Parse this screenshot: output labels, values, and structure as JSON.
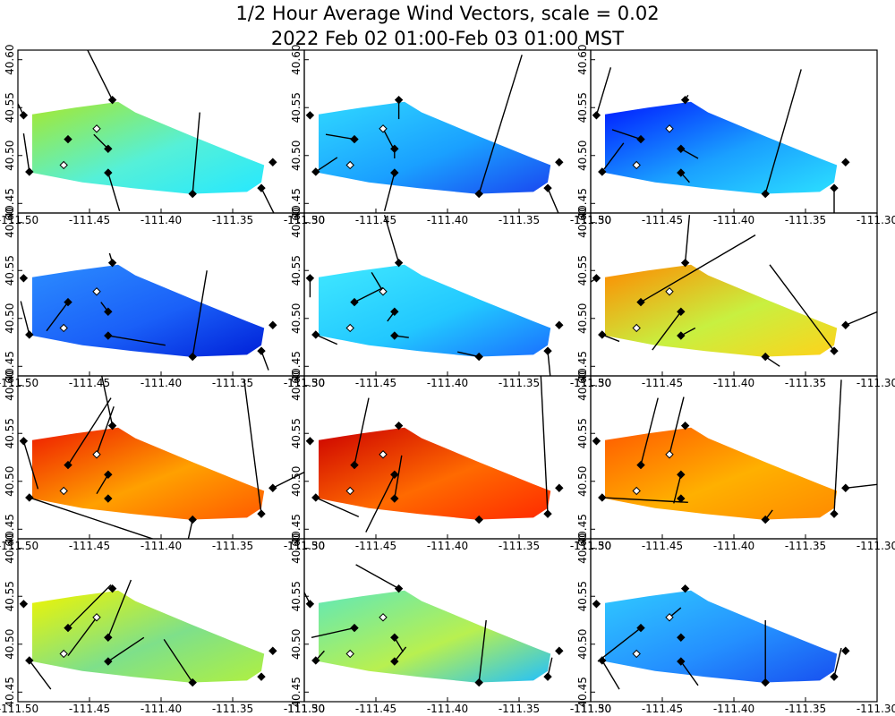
{
  "title": {
    "line1": "1/2 Hour Average Wind Vectors, scale =  0.02",
    "line2": "2022 Feb 02 01:00-Feb 03 01:00 MST"
  },
  "chart_data": {
    "type": "grid-map",
    "rows": 4,
    "cols": 3,
    "x_ticks": [
      "-111.50",
      "-111.45",
      "-111.40",
      "-111.35",
      "-111.30"
    ],
    "x_tick_values": [
      -111.5,
      -111.45,
      -111.4,
      -111.35,
      -111.3
    ],
    "y_ticks": [
      "40.45",
      "40.50",
      "40.55",
      "40.60"
    ],
    "y_tick_values": [
      40.45,
      40.5,
      40.55,
      40.6
    ],
    "xlim": [
      -111.5,
      -111.3
    ],
    "ylim": [
      40.44,
      40.61
    ],
    "region_polygon": [
      [
        -111.49,
        40.543
      ],
      [
        -111.46,
        40.55
      ],
      [
        -111.43,
        40.556
      ],
      [
        -111.418,
        40.545
      ],
      [
        -111.378,
        40.52
      ],
      [
        -111.34,
        40.497
      ],
      [
        -111.328,
        40.49
      ],
      [
        -111.33,
        40.472
      ],
      [
        -111.34,
        40.462
      ],
      [
        -111.38,
        40.46
      ],
      [
        -111.42,
        40.466
      ],
      [
        -111.455,
        40.472
      ],
      [
        -111.49,
        40.482
      ]
    ],
    "stations": [
      {
        "lon": -111.496,
        "lat": 40.542,
        "filled": true
      },
      {
        "lon": -111.434,
        "lat": 40.558,
        "filled": true
      },
      {
        "lon": -111.465,
        "lat": 40.517,
        "filled": true
      },
      {
        "lon": -111.445,
        "lat": 40.528,
        "filled": false
      },
      {
        "lon": -111.437,
        "lat": 40.507,
        "filled": true
      },
      {
        "lon": -111.468,
        "lat": 40.49,
        "filled": false
      },
      {
        "lon": -111.492,
        "lat": 40.483,
        "filled": true
      },
      {
        "lon": -111.437,
        "lat": 40.482,
        "filled": true
      },
      {
        "lon": -111.378,
        "lat": 40.46,
        "filled": true
      },
      {
        "lon": -111.33,
        "lat": 40.466,
        "filled": true
      },
      {
        "lon": -111.322,
        "lat": 40.493,
        "filled": true
      }
    ],
    "panels": [
      {
        "c1": "#a6e82c",
        "c2": "#26e8ff",
        "c3": "#55f0d8",
        "vectors": [
          [
            0,
            -0.02,
            0.06
          ],
          [
            1,
            -0.02,
            0.06
          ],
          [
            2,
            0,
            0
          ],
          [
            3,
            0,
            0
          ],
          [
            4,
            -0.01,
            0.015
          ],
          [
            5,
            0,
            0
          ],
          [
            6,
            -0.004,
            0.04
          ],
          [
            7,
            0.008,
            -0.04
          ],
          [
            8,
            0.005,
            0.085
          ],
          [
            9,
            0.01,
            -0.03
          ],
          [
            10,
            0,
            0
          ]
        ]
      },
      {
        "c1": "#30d8ff",
        "c2": "#1a46f0",
        "c3": "#1aa0ff",
        "vectors": [
          [
            0,
            0,
            0
          ],
          [
            1,
            0,
            -0.02
          ],
          [
            2,
            -0.02,
            0.005
          ],
          [
            3,
            0.007,
            -0.02
          ],
          [
            4,
            0,
            -0.01
          ],
          [
            5,
            0,
            0
          ],
          [
            6,
            0.015,
            0.015
          ],
          [
            7,
            -0.007,
            -0.04
          ],
          [
            8,
            0.03,
            0.145
          ],
          [
            9,
            0.01,
            -0.035
          ],
          [
            10,
            0,
            0
          ]
        ]
      },
      {
        "c1": "#0018ff",
        "c2": "#2ce0ff",
        "c3": "#1aa0ff",
        "vectors": [
          [
            0,
            0.01,
            0.05
          ],
          [
            1,
            0.002,
            0.005
          ],
          [
            2,
            -0.02,
            0.01
          ],
          [
            3,
            0,
            0
          ],
          [
            4,
            0.012,
            -0.01
          ],
          [
            5,
            0,
            0
          ],
          [
            6,
            0.015,
            0.03
          ],
          [
            7,
            0.006,
            -0.01
          ],
          [
            8,
            0.025,
            0.13
          ],
          [
            9,
            0,
            -0.04
          ],
          [
            10,
            0,
            0
          ]
        ]
      },
      {
        "c1": "#2c8cff",
        "c2": "#0020d8",
        "c3": "#1a60f8",
        "vectors": [
          [
            0,
            0,
            0
          ],
          [
            1,
            -0.002,
            0.01
          ],
          [
            2,
            -0.015,
            -0.03
          ],
          [
            3,
            0,
            0
          ],
          [
            4,
            -0.005,
            0.01
          ],
          [
            5,
            0,
            0
          ],
          [
            6,
            -0.006,
            0.035
          ],
          [
            7,
            0.04,
            -0.01
          ],
          [
            8,
            0.01,
            0.09
          ],
          [
            9,
            0.005,
            -0.02
          ],
          [
            10,
            0,
            0
          ]
        ]
      },
      {
        "c1": "#40e8ff",
        "c2": "#1a70ff",
        "c3": "#22c8ff",
        "vectors": [
          [
            0,
            0,
            -0.02
          ],
          [
            1,
            -0.01,
            0.05
          ],
          [
            2,
            0.02,
            0.015
          ],
          [
            3,
            -0.008,
            0.02
          ],
          [
            4,
            -0.005,
            -0.01
          ],
          [
            5,
            0,
            0
          ],
          [
            6,
            0.015,
            -0.01
          ],
          [
            7,
            0.01,
            -0.002
          ],
          [
            8,
            -0.015,
            0.005
          ],
          [
            9,
            0.002,
            -0.03
          ],
          [
            10,
            0,
            0
          ]
        ]
      },
      {
        "c1": "#ff8a00",
        "c2": "#ffd21a",
        "c3": "#c8f040",
        "vectors": [
          [
            0,
            -0.02,
            -0.02
          ],
          [
            1,
            0.003,
            0.05
          ],
          [
            2,
            0.08,
            0.07
          ],
          [
            3,
            0,
            0
          ],
          [
            4,
            -0.02,
            -0.04
          ],
          [
            5,
            0,
            0
          ],
          [
            6,
            0.012,
            -0.007
          ],
          [
            7,
            0.01,
            0.008
          ],
          [
            8,
            0.01,
            -0.01
          ],
          [
            9,
            -0.045,
            0.09
          ],
          [
            10,
            0.04,
            0.025
          ]
        ]
      },
      {
        "c1": "#ee1a00",
        "c2": "#ff5a00",
        "c3": "#ffa000",
        "vectors": [
          [
            0,
            0.01,
            -0.05
          ],
          [
            1,
            -0.01,
            0.07
          ],
          [
            2,
            0.03,
            0.07
          ],
          [
            3,
            0.012,
            0.05
          ],
          [
            4,
            -0.008,
            -0.02
          ],
          [
            5,
            0,
            0
          ],
          [
            6,
            0.13,
            -0.065
          ],
          [
            7,
            0,
            0
          ],
          [
            8,
            -0.003,
            -0.02
          ],
          [
            9,
            -0.012,
            0.14
          ],
          [
            10,
            0.04,
            0.03
          ]
        ]
      },
      {
        "c1": "#cc0000",
        "c2": "#ff2a00",
        "c3": "#ff6a00",
        "vectors": [
          [
            0,
            0,
            0
          ],
          [
            1,
            0,
            0
          ],
          [
            2,
            0.01,
            0.07
          ],
          [
            3,
            0,
            0
          ],
          [
            4,
            -0.02,
            -0.06
          ],
          [
            5,
            0,
            0
          ],
          [
            6,
            0.03,
            -0.02
          ],
          [
            7,
            0.005,
            0.045
          ],
          [
            8,
            0,
            0
          ],
          [
            9,
            -0.005,
            0.15
          ],
          [
            10,
            0,
            0
          ]
        ]
      },
      {
        "c1": "#ff5a00",
        "c2": "#ff8a00",
        "c3": "#ffb000",
        "vectors": [
          [
            0,
            0,
            0
          ],
          [
            1,
            0,
            0
          ],
          [
            2,
            0.012,
            0.07
          ],
          [
            3,
            0.01,
            0.06
          ],
          [
            4,
            -0.005,
            -0.03
          ],
          [
            5,
            0,
            0
          ],
          [
            6,
            0.06,
            -0.005
          ],
          [
            7,
            0,
            0
          ],
          [
            8,
            0.005,
            0.01
          ],
          [
            9,
            0.005,
            0.14
          ],
          [
            10,
            0.06,
            0.01
          ]
        ]
      },
      {
        "c1": "#f0f500",
        "c2": "#b0f040",
        "c3": "#7ee08a",
        "vectors": [
          [
            0,
            0,
            0
          ],
          [
            1,
            0,
            0
          ],
          [
            2,
            0.03,
            0.045
          ],
          [
            3,
            -0.02,
            -0.04
          ],
          [
            4,
            0.016,
            0.06
          ],
          [
            5,
            0,
            0
          ],
          [
            6,
            0.015,
            -0.03
          ],
          [
            7,
            0.025,
            0.025
          ],
          [
            8,
            -0.02,
            0.045
          ],
          [
            9,
            0,
            0
          ],
          [
            10,
            0,
            0
          ]
        ]
      },
      {
        "c1": "#60e8b8",
        "c2": "#20c0ff",
        "c3": "#b8f050",
        "vectors": [
          [
            0,
            -0.01,
            0.03
          ],
          [
            1,
            -0.03,
            0.025
          ],
          [
            2,
            -0.03,
            -0.01
          ],
          [
            3,
            0,
            0
          ],
          [
            4,
            0.006,
            -0.015
          ],
          [
            5,
            0,
            0
          ],
          [
            6,
            0.006,
            0.01
          ],
          [
            7,
            0.008,
            0.015
          ],
          [
            8,
            0.005,
            0.065
          ],
          [
            9,
            0.003,
            0.02
          ],
          [
            10,
            0,
            0
          ]
        ]
      },
      {
        "c1": "#30c8ff",
        "c2": "#1850f0",
        "c3": "#2490ff",
        "vectors": [
          [
            0,
            0,
            0
          ],
          [
            1,
            0,
            0
          ],
          [
            2,
            -0.03,
            -0.035
          ],
          [
            3,
            0.008,
            0.01
          ],
          [
            4,
            0,
            0
          ],
          [
            5,
            0,
            0
          ],
          [
            6,
            0.012,
            -0.03
          ],
          [
            7,
            0.012,
            -0.025
          ],
          [
            8,
            0,
            0.065
          ],
          [
            9,
            0.005,
            0.03
          ],
          [
            10,
            0,
            0
          ]
        ]
      }
    ]
  }
}
